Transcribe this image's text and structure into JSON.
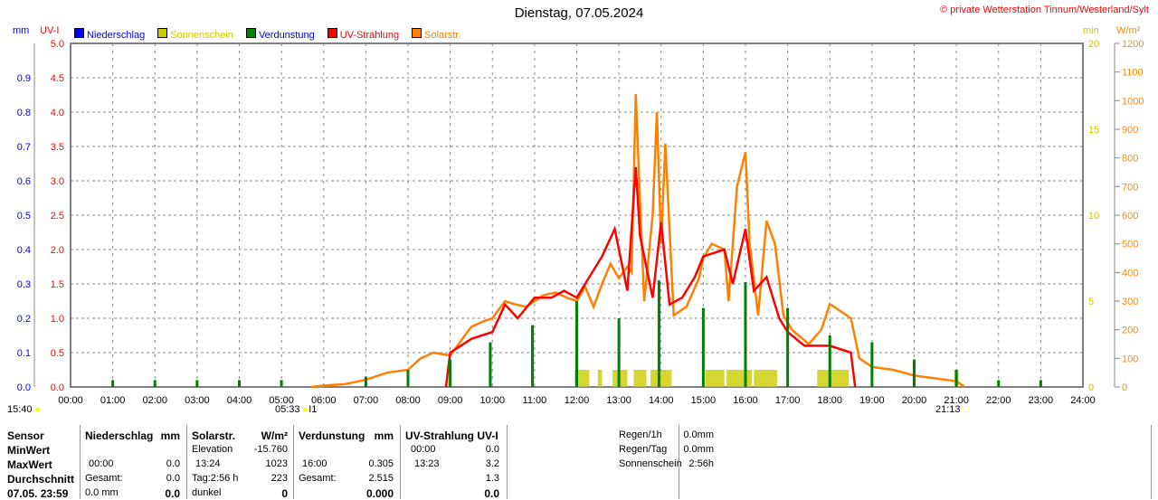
{
  "header": {
    "title": "Dienstag, 07.05.2024",
    "copyright": "© private Wetterstation Tinnum/Westerland/Sylt"
  },
  "legend": [
    {
      "label": "Niederschlag",
      "color": "#0000ff",
      "text_color": "#0000ff"
    },
    {
      "label": "Sonnenschein",
      "color": "#cccc00",
      "text_color": "#cccc00"
    },
    {
      "label": "Verdunstung",
      "color": "#008000",
      "text_color": "#0000ff"
    },
    {
      "label": "UV-Strahlung",
      "color": "#ff0000",
      "text_color": "#ff0000"
    },
    {
      "label": "Solarstr.",
      "color": "#ff8000",
      "text_color": "#ff8000"
    }
  ],
  "sun": {
    "yesterday_set": "15:40",
    "rise": "05:33",
    "rise_mark": "I1",
    "set": "21:13"
  },
  "chart_data": {
    "type": "line",
    "title": "Dienstag, 07.05.2024",
    "x_ticks": [
      "00:00",
      "01:00",
      "02:00",
      "03:00",
      "04:00",
      "05:00",
      "06:00",
      "07:00",
      "08:00",
      "09:00",
      "10:00",
      "11:00",
      "12:00",
      "13:00",
      "14:00",
      "15:00",
      "16:00",
      "17:00",
      "18:00",
      "19:00",
      "20:00",
      "21:00",
      "22:00",
      "23:00",
      "24:00"
    ],
    "axes": {
      "mm": {
        "label": "mm",
        "range": [
          0,
          1.0
        ],
        "ticks": [
          "0.0",
          "0.1",
          "0.2",
          "0.3",
          "0.4",
          "0.5",
          "0.6",
          "0.7",
          "0.8",
          "0.9"
        ]
      },
      "uv": {
        "label": "UV-I",
        "range": [
          0,
          5
        ],
        "ticks": [
          "0.0",
          "0.5",
          "1.0",
          "1.5",
          "2.0",
          "2.5",
          "3.0",
          "3.5",
          "4.0",
          "4.5",
          "5.0"
        ]
      },
      "min": {
        "label": "min",
        "range": [
          0,
          20
        ],
        "ticks": [
          "0",
          "5",
          "10",
          "15",
          "20"
        ]
      },
      "wm2": {
        "label": "W/m²",
        "range": [
          0,
          1200
        ],
        "ticks": [
          "0",
          "100",
          "200",
          "300",
          "400",
          "500",
          "600",
          "700",
          "800",
          "900",
          "1000",
          "1100",
          "1200"
        ]
      }
    },
    "series": [
      {
        "name": "Solarstr.",
        "axis": "wm2",
        "color": "#ff8000",
        "points": [
          [
            5.7,
            0
          ],
          [
            6.0,
            5
          ],
          [
            6.5,
            10
          ],
          [
            7.0,
            25
          ],
          [
            7.5,
            50
          ],
          [
            8.0,
            60
          ],
          [
            8.3,
            100
          ],
          [
            8.6,
            120
          ],
          [
            9.0,
            110
          ],
          [
            9.2,
            150
          ],
          [
            9.5,
            210
          ],
          [
            9.8,
            230
          ],
          [
            10.0,
            240
          ],
          [
            10.3,
            300
          ],
          [
            10.5,
            290
          ],
          [
            10.8,
            280
          ],
          [
            11.0,
            300
          ],
          [
            11.2,
            320
          ],
          [
            11.5,
            330
          ],
          [
            11.8,
            310
          ],
          [
            12.0,
            300
          ],
          [
            12.2,
            350
          ],
          [
            12.4,
            280
          ],
          [
            12.6,
            360
          ],
          [
            12.8,
            430
          ],
          [
            13.0,
            380
          ],
          [
            13.2,
            420
          ],
          [
            13.3,
            400
          ],
          [
            13.4,
            1023
          ],
          [
            13.5,
            650
          ],
          [
            13.6,
            300
          ],
          [
            13.8,
            600
          ],
          [
            13.9,
            960
          ],
          [
            14.0,
            500
          ],
          [
            14.1,
            850
          ],
          [
            14.3,
            250
          ],
          [
            14.6,
            280
          ],
          [
            14.9,
            380
          ],
          [
            15.0,
            450
          ],
          [
            15.2,
            500
          ],
          [
            15.5,
            480
          ],
          [
            15.6,
            300
          ],
          [
            15.8,
            700
          ],
          [
            16.0,
            820
          ],
          [
            16.1,
            500
          ],
          [
            16.3,
            250
          ],
          [
            16.5,
            580
          ],
          [
            16.7,
            500
          ],
          [
            16.9,
            250
          ],
          [
            17.1,
            200
          ],
          [
            17.5,
            150
          ],
          [
            17.8,
            200
          ],
          [
            18.0,
            290
          ],
          [
            18.2,
            270
          ],
          [
            18.5,
            240
          ],
          [
            18.7,
            100
          ],
          [
            19.0,
            70
          ],
          [
            19.5,
            60
          ],
          [
            20.0,
            40
          ],
          [
            20.5,
            30
          ],
          [
            21.0,
            20
          ],
          [
            21.2,
            0
          ]
        ]
      },
      {
        "name": "UV-Strahlung",
        "axis": "uv",
        "color": "#ff0000",
        "points": [
          [
            8.9,
            0
          ],
          [
            9.0,
            0.5
          ],
          [
            9.5,
            0.7
          ],
          [
            10.0,
            0.8
          ],
          [
            10.3,
            1.2
          ],
          [
            10.6,
            1.0
          ],
          [
            11.0,
            1.3
          ],
          [
            11.4,
            1.3
          ],
          [
            11.7,
            1.4
          ],
          [
            12.0,
            1.3
          ],
          [
            12.3,
            1.6
          ],
          [
            12.6,
            1.9
          ],
          [
            12.9,
            2.3
          ],
          [
            13.2,
            1.4
          ],
          [
            13.4,
            3.2
          ],
          [
            13.5,
            2.2
          ],
          [
            13.8,
            1.3
          ],
          [
            14.0,
            2.4
          ],
          [
            14.2,
            1.2
          ],
          [
            14.5,
            1.3
          ],
          [
            14.8,
            1.6
          ],
          [
            15.0,
            1.9
          ],
          [
            15.5,
            2.0
          ],
          [
            15.7,
            1.5
          ],
          [
            16.0,
            2.3
          ],
          [
            16.2,
            1.4
          ],
          [
            16.5,
            1.6
          ],
          [
            16.8,
            1.0
          ],
          [
            17.0,
            0.8
          ],
          [
            17.4,
            0.6
          ],
          [
            18.0,
            0.6
          ],
          [
            18.5,
            0.5
          ],
          [
            18.6,
            0
          ]
        ]
      },
      {
        "name": "Verdunstung",
        "axis": "mm",
        "type": "bar",
        "color": "#008000",
        "points": [
          [
            1,
            0.02
          ],
          [
            2,
            0.02
          ],
          [
            3,
            0.02
          ],
          [
            4,
            0.02
          ],
          [
            5,
            0.02
          ],
          [
            7,
            0.03
          ],
          [
            8,
            0.05
          ],
          [
            9,
            0.08
          ],
          [
            9.95,
            0.13
          ],
          [
            10.95,
            0.18
          ],
          [
            12,
            0.25
          ],
          [
            13,
            0.2
          ],
          [
            13.95,
            0.31
          ],
          [
            15,
            0.23
          ],
          [
            16,
            0.305
          ],
          [
            17,
            0.23
          ],
          [
            18,
            0.15
          ],
          [
            19,
            0.13
          ],
          [
            20,
            0.08
          ],
          [
            21,
            0.05
          ],
          [
            22,
            0.02
          ],
          [
            23,
            0.02
          ]
        ]
      },
      {
        "name": "Sonnenschein",
        "axis": "min",
        "type": "block",
        "color": "#cccc00",
        "blocks": [
          [
            11.95,
            12.3,
            1
          ],
          [
            12.5,
            12.6,
            1
          ],
          [
            12.85,
            13.2,
            1
          ],
          [
            13.35,
            13.65,
            1
          ],
          [
            13.75,
            14.25,
            1
          ],
          [
            15.05,
            15.5,
            1
          ],
          [
            15.55,
            16.15,
            1
          ],
          [
            16.2,
            16.75,
            1
          ],
          [
            17.7,
            18.45,
            1
          ],
          [
            20.95,
            21.05,
            1
          ]
        ]
      }
    ]
  },
  "table": {
    "headers": [
      "Sensor",
      "Niederschlag",
      "mm",
      "Solarstr.",
      "W/m²",
      "Verdunstung",
      "mm",
      "UV-Strahlung UV-I"
    ],
    "row_labels": [
      "MinWert",
      "MaxWert",
      "Durchschnitt",
      "07.05. 23:59"
    ],
    "niederschlag": [
      [
        "",
        ""
      ],
      [
        "00:00",
        "0.0"
      ],
      [
        "Gesamt:",
        "0.0"
      ],
      [
        "0.0 mm",
        "0.0"
      ]
    ],
    "solar": [
      [
        "Elevation",
        "-15.760"
      ],
      [
        "13:24",
        "1023"
      ],
      [
        "Tag:2:56 h",
        "223"
      ],
      [
        "dunkel",
        "0"
      ]
    ],
    "verdunstung": [
      [
        "",
        ""
      ],
      [
        "16:00",
        "0.305"
      ],
      [
        "Gesamt:",
        "2.515"
      ],
      [
        "",
        "0.000"
      ]
    ],
    "uv": [
      [
        "00:00",
        "0.0"
      ],
      [
        "13:23",
        "3.2"
      ],
      [
        "",
        "1.3"
      ],
      [
        "",
        "0.0"
      ]
    ],
    "summary": [
      [
        "Regen/1h",
        "0.0mm"
      ],
      [
        "Regen/Tag",
        "0.0mm"
      ],
      [
        "Sonnenschein",
        "2:56h"
      ]
    ]
  }
}
